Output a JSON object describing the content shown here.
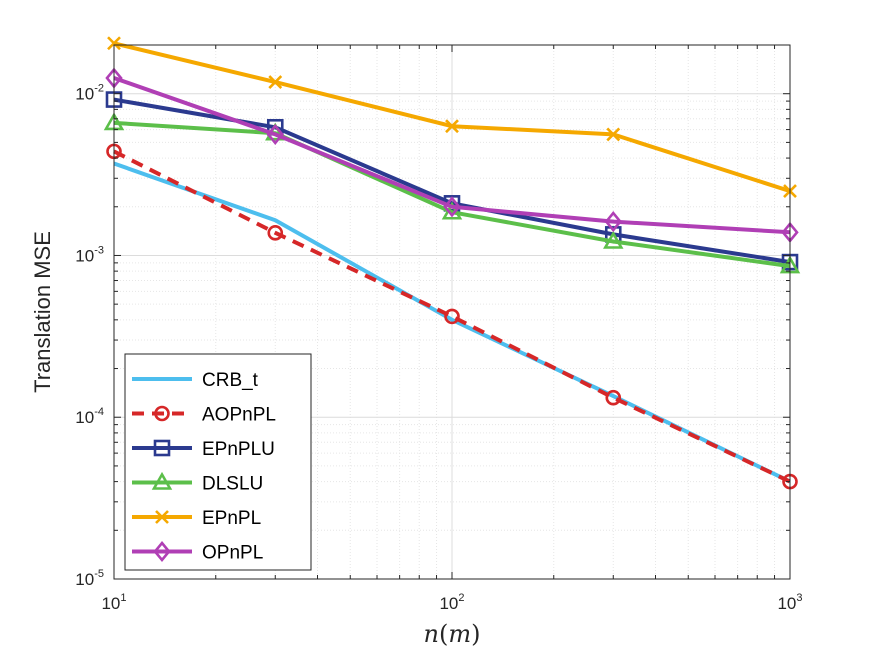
{
  "chart_data": {
    "type": "line",
    "xscale": "log",
    "yscale": "log",
    "xlim": [
      10,
      1000
    ],
    "ylim": [
      1e-05,
      0.02
    ],
    "xlabel_base": "n",
    "xlabel_arg": "m",
    "ylabel": "Translation MSE",
    "grid": true,
    "minor_grid": true,
    "legend_position": "bottom-left",
    "x_ticks": [
      {
        "value": 10,
        "base": "10",
        "exp": "1"
      },
      {
        "value": 100,
        "base": "10",
        "exp": "2"
      },
      {
        "value": 1000,
        "base": "10",
        "exp": "3"
      }
    ],
    "y_ticks": [
      {
        "value": 1e-05,
        "base": "10",
        "exp": "-5"
      },
      {
        "value": 0.0001,
        "base": "10",
        "exp": "-4"
      },
      {
        "value": 0.001,
        "base": "10",
        "exp": "-3"
      },
      {
        "value": 0.01,
        "base": "10",
        "exp": "-2"
      }
    ],
    "x": [
      10,
      30,
      100,
      300,
      1000
    ],
    "series": [
      {
        "name": "CRB_t",
        "color": "#4DBEEE",
        "marker": "none",
        "dash": "solid",
        "values": [
          0.0037,
          0.00165,
          0.0004,
          0.000135,
          4e-05
        ]
      },
      {
        "name": "AOPnPL",
        "color": "#D62728",
        "marker": "circle",
        "dash": "dashed",
        "values": [
          0.0044,
          0.00138,
          0.00042,
          0.000132,
          4e-05
        ]
      },
      {
        "name": "EPnPLU",
        "color": "#2B3A8F",
        "marker": "square",
        "dash": "solid",
        "values": [
          0.0092,
          0.0062,
          0.0021,
          0.00135,
          0.00091
        ]
      },
      {
        "name": "DLSLU",
        "color": "#5CBF4A",
        "marker": "triangle",
        "dash": "solid",
        "values": [
          0.0066,
          0.0057,
          0.00185,
          0.00122,
          0.00086
        ]
      },
      {
        "name": "EPnPL",
        "color": "#F5A800",
        "marker": "x",
        "dash": "solid",
        "values": [
          0.0205,
          0.0118,
          0.0063,
          0.0056,
          0.0025
        ]
      },
      {
        "name": "OPnPL",
        "color": "#B03FB5",
        "marker": "diamond",
        "dash": "solid",
        "values": [
          0.0125,
          0.0056,
          0.002,
          0.00162,
          0.00139
        ]
      }
    ]
  }
}
